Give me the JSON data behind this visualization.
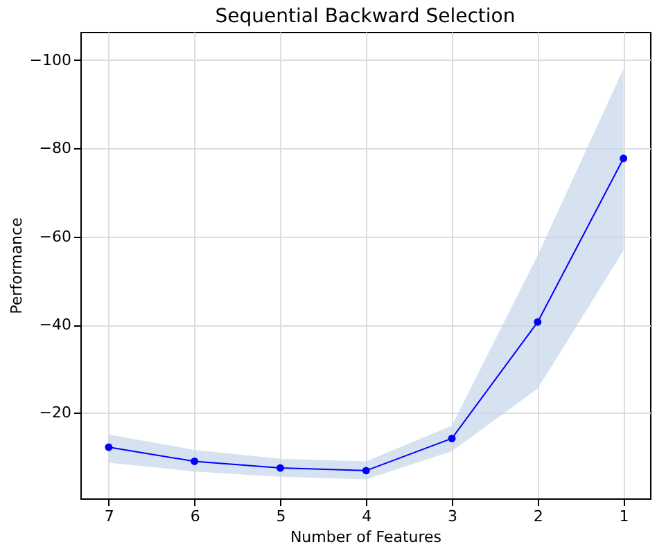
{
  "chart_data": {
    "type": "line",
    "title": "Sequential Backward Selection",
    "xlabel": "Number of Features",
    "ylabel": "Performance",
    "x": [
      7,
      6,
      5,
      4,
      3,
      2,
      1
    ],
    "series": [
      {
        "color": "#0000ff",
        "values": [
          -12.2,
          -9.0,
          -7.5,
          -6.9,
          -14.2,
          -40.6,
          -77.7
        ],
        "lower": [
          -8.7,
          -6.7,
          -5.5,
          -4.9,
          -11.3,
          -25.5,
          -56.8
        ],
        "upper": [
          -15.1,
          -11.6,
          -9.6,
          -9.0,
          -17.1,
          -55.7,
          -98.0
        ]
      }
    ],
    "xlim": [
      7.33,
      0.69
    ],
    "xticks": [
      7,
      6,
      5,
      4,
      3,
      2,
      1
    ],
    "ylim": [
      -0.6,
      -106.4
    ],
    "yticks": [
      -100,
      -80,
      -60,
      -40,
      -20
    ],
    "grid": true,
    "marker": "circle",
    "line_style": "solid"
  }
}
